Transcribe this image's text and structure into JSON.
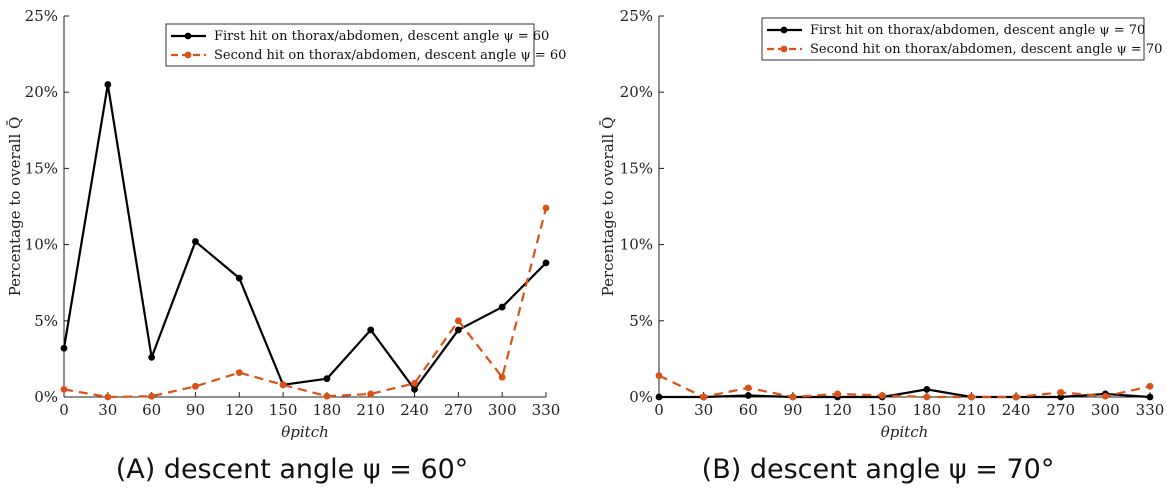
{
  "chart_data": [
    {
      "type": "line",
      "caption": "(A) descent angle ψ = 60°",
      "xlabel": "θpitch",
      "ylabel": "Percentage to overall Q̄",
      "x": [
        0,
        30,
        60,
        90,
        120,
        150,
        180,
        210,
        240,
        270,
        300,
        330
      ],
      "xticks": [
        "0",
        "30",
        "60",
        "90",
        "120",
        "150",
        "180",
        "210",
        "240",
        "270",
        "300",
        "330"
      ],
      "ylim": [
        0,
        25
      ],
      "yticks": [
        "0%",
        "5%",
        "10%",
        "15%",
        "20%",
        "25%"
      ],
      "legend_position": "top-right",
      "series": [
        {
          "name": "First hit on thorax/abdomen, descent angle ψ = 60",
          "color": "#000000",
          "dash": "solid",
          "values": [
            3.2,
            20.5,
            2.6,
            10.2,
            7.8,
            0.8,
            1.2,
            4.4,
            0.5,
            4.4,
            5.9,
            8.8
          ]
        },
        {
          "name": "Second hit on thorax/abdomen, descent angle ψ = 60",
          "color": "#d95319",
          "dash": "dashed",
          "values": [
            0.5,
            0.0,
            0.05,
            0.7,
            1.6,
            0.8,
            0.05,
            0.2,
            0.9,
            5.0,
            1.3,
            12.4
          ]
        }
      ]
    },
    {
      "type": "line",
      "caption": "(B) descent angle ψ = 70°",
      "xlabel": "θpitch",
      "ylabel": "Percentage to overall Q̄",
      "x": [
        0,
        30,
        60,
        90,
        120,
        150,
        180,
        210,
        240,
        270,
        300,
        330
      ],
      "xticks": [
        "0",
        "30",
        "60",
        "90",
        "120",
        "150",
        "180",
        "210",
        "240",
        "270",
        "300",
        "330"
      ],
      "ylim": [
        0,
        25
      ],
      "yticks": [
        "0%",
        "5%",
        "10%",
        "15%",
        "20%",
        "25%"
      ],
      "legend_position": "top-right",
      "series": [
        {
          "name": "First hit on thorax/abdomen, descent angle ψ = 70",
          "color": "#000000",
          "dash": "solid",
          "values": [
            0.0,
            0.0,
            0.1,
            0.0,
            0.0,
            0.0,
            0.5,
            0.0,
            0.0,
            0.0,
            0.2,
            0.0
          ]
        },
        {
          "name": "Second hit on thorax/abdomen, descent angle ψ = 70",
          "color": "#d95319",
          "dash": "dashed",
          "values": [
            1.4,
            0.0,
            0.6,
            0.0,
            0.2,
            0.1,
            0.0,
            0.0,
            0.0,
            0.3,
            0.05,
            0.7
          ]
        }
      ]
    }
  ]
}
